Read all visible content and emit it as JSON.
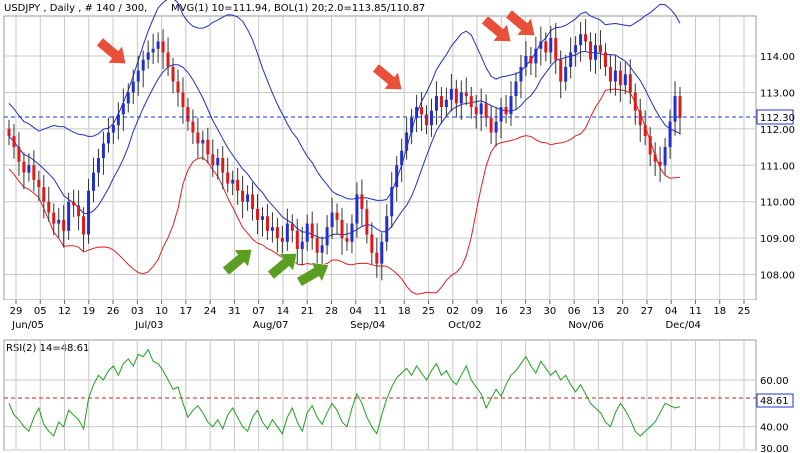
{
  "chart_data": [
    {
      "type": "candlestick",
      "title": "USDJPY , Daily , # 140 / 300,",
      "indicators_text": "MVG(1) 10=111.94, BOL(1) 20;2.0=113.85/110.87",
      "ylim": [
        107.3,
        115.1
      ],
      "yticks": [
        "108.00",
        "109.00",
        "110.00",
        "111.00",
        "112.00",
        "113.00",
        "114.00"
      ],
      "x_day_labels": [
        "29",
        "05",
        "12",
        "19",
        "26",
        "03",
        "10",
        "17",
        "24",
        "31",
        "07",
        "14",
        "21",
        "28",
        "04",
        "11",
        "18",
        "25",
        "02",
        "09",
        "16",
        "23",
        "30",
        "06",
        "13",
        "20",
        "27",
        "04",
        "11",
        "18",
        "25"
      ],
      "x_month_labels": [
        "Jun/05",
        "Jul/03",
        "Aug/07",
        "Sep/04",
        "Oct/02",
        "Nov/06",
        "Dec/04"
      ],
      "current_price": "112.30",
      "close": [
        111.8,
        111.5,
        111.1,
        110.8,
        111.0,
        110.6,
        110.4,
        110.0,
        109.7,
        109.4,
        109.5,
        109.2,
        110.0,
        109.9,
        109.6,
        109.1,
        110.3,
        110.8,
        111.2,
        111.6,
        111.9,
        112.1,
        112.4,
        112.7,
        113.0,
        113.3,
        113.6,
        113.9,
        114.1,
        114.2,
        114.4,
        114.1,
        113.7,
        113.3,
        113.0,
        112.6,
        112.2,
        111.9,
        111.6,
        111.7,
        111.3,
        111.0,
        111.2,
        110.8,
        110.5,
        110.6,
        110.3,
        110.0,
        110.2,
        109.8,
        109.5,
        109.6,
        109.2,
        109.3,
        109.0,
        108.9,
        109.4,
        109.2,
        108.7,
        108.9,
        109.4,
        109.0,
        108.6,
        108.8,
        109.3,
        109.7,
        109.5,
        109.0,
        108.9,
        109.4,
        110.2,
        109.8,
        109.1,
        108.6,
        108.3,
        108.9,
        109.6,
        110.4,
        111.0,
        111.4,
        111.9,
        112.3,
        112.6,
        112.4,
        112.1,
        112.5,
        112.9,
        112.6,
        112.8,
        113.1,
        112.7,
        113.0,
        112.9,
        112.6,
        112.4,
        112.7,
        112.3,
        111.9,
        112.2,
        112.6,
        112.4,
        112.9,
        113.3,
        113.7,
        114.0,
        113.8,
        114.2,
        114.4,
        114.1,
        114.5,
        113.9,
        113.3,
        113.7,
        114.1,
        114.3,
        114.6,
        114.4,
        113.9,
        114.3,
        114.1,
        113.7,
        113.3,
        113.6,
        113.2,
        113.5,
        113.0,
        112.5,
        112.1,
        111.8,
        111.3,
        111.1,
        111.0,
        111.5,
        112.2,
        112.9,
        112.3
      ],
      "rsi": {
        "label": "RSI(2) 14=48.61",
        "current": "48.61",
        "level": 50,
        "ylim": [
          30,
          75
        ],
        "yticks": [
          "30.00",
          "40.00",
          "60.00"
        ],
        "values": [
          50,
          45,
          43,
          40,
          38,
          44,
          48,
          41,
          38,
          36,
          42,
          40,
          47,
          45,
          43,
          39,
          52,
          58,
          62,
          60,
          64,
          66,
          62,
          67,
          69,
          66,
          71,
          70,
          73,
          68,
          67,
          64,
          60,
          56,
          57,
          50,
          44,
          47,
          49,
          46,
          42,
          40,
          43,
          39,
          45,
          48,
          44,
          40,
          38,
          44,
          47,
          42,
          39,
          43,
          40,
          37,
          44,
          48,
          42,
          38,
          46,
          49,
          44,
          41,
          46,
          50,
          47,
          42,
          40,
          48,
          54,
          50,
          44,
          40,
          37,
          45,
          52,
          57,
          61,
          63,
          65,
          62,
          66,
          63,
          60,
          64,
          67,
          62,
          64,
          60,
          58,
          62,
          66,
          60,
          57,
          54,
          48,
          52,
          56,
          53,
          58,
          62,
          64,
          67,
          70,
          66,
          63,
          68,
          65,
          62,
          64,
          60,
          62,
          58,
          55,
          58,
          54,
          50,
          48,
          46,
          42,
          40,
          46,
          50,
          47,
          43,
          38,
          36,
          38,
          40,
          42,
          46,
          50,
          49,
          48,
          48.61
        ]
      }
    }
  ]
}
